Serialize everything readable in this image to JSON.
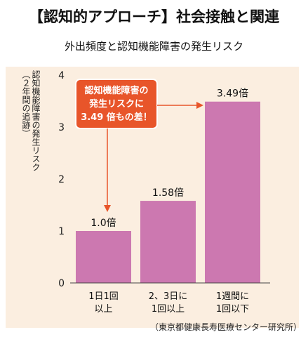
{
  "headline": "【認知的アプローチ】社会接触と関連",
  "chart_data": {
    "type": "bar",
    "title": "外出頻度と認知機能障害の発生リスク",
    "ylabel": [
      "認知機能障害の発生リスク",
      "（２年間の追跡）"
    ],
    "xlabel": "",
    "ylim": [
      0,
      4
    ],
    "yticks": [
      0,
      1,
      2,
      3,
      4
    ],
    "categories": [
      [
        "1日1回",
        "以上"
      ],
      [
        "2、3日に",
        "1回以上"
      ],
      [
        "1週間に",
        "1回以下"
      ]
    ],
    "values": [
      1.0,
      1.58,
      3.49
    ],
    "value_labels": [
      "1.0倍",
      "1.58倍",
      "3.49倍"
    ],
    "bar_color": "#cc78b0",
    "panel_color": "#fbeee0",
    "callout": {
      "lines": [
        "認知機能障害の",
        "発生リスクに",
        "3.49 倍もの差！"
      ],
      "color": "#e8552a"
    },
    "grid": false,
    "source": "（東京都健康長寿医療センター研究所）"
  }
}
